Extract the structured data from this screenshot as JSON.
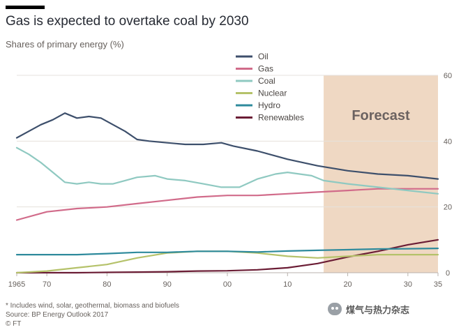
{
  "title": "Gas is expected to overtake coal by 2030",
  "subtitle": "Shares of primary energy (%)",
  "footnote": [
    "* Includes wind, solar, geothermal, biomass and biofuels",
    "Source: BP Energy Outlook 2017",
    "© FT"
  ],
  "watermark": "煤气与热力杂志",
  "colors": {
    "background": "#ffffff",
    "forecast_band": "#efd8c3",
    "forecast_text": "#6b6260",
    "grid": "#e6e1dc",
    "axis": "#b8b2ac",
    "tick_text": "#66605c"
  },
  "chart_data": {
    "type": "line",
    "title": "Gas is expected to overtake coal by 2030",
    "subtitle": "Shares of primary energy (%)",
    "xlabel": "",
    "ylabel": "",
    "xlim": [
      1965,
      2035
    ],
    "ylim": [
      0,
      60
    ],
    "x_ticks": [
      1965,
      1970,
      1980,
      1990,
      2000,
      2010,
      2020,
      2030,
      2035
    ],
    "x_tick_labels": [
      "1965",
      "70",
      "80",
      "90",
      "00",
      "10",
      "20",
      "30",
      "35"
    ],
    "y_ticks": [
      0,
      20,
      40,
      60
    ],
    "y_tick_labels": [
      "0",
      "20",
      "40",
      "60"
    ],
    "grid": true,
    "legend_position": "top-left",
    "forecast": {
      "start": 2016,
      "end": 2035,
      "label": "Forecast"
    },
    "series": [
      {
        "name": "Oil",
        "color": "#3d4f6b",
        "x": [
          1965,
          1967,
          1969,
          1971,
          1973,
          1975,
          1977,
          1979,
          1981,
          1983,
          1985,
          1987,
          1990,
          1993,
          1996,
          1999,
          2001,
          2005,
          2010,
          2015,
          2020,
          2025,
          2030,
          2035
        ],
        "values": [
          41,
          43,
          45,
          46.5,
          48.5,
          47,
          47.5,
          47,
          45,
          43,
          40.5,
          40,
          39.5,
          39,
          39,
          39.5,
          38.5,
          37,
          34.5,
          32.5,
          31,
          30,
          29.5,
          28.5
        ]
      },
      {
        "name": "Gas",
        "color": "#d16b8a",
        "x": [
          1965,
          1970,
          1975,
          1980,
          1985,
          1990,
          1995,
          2000,
          2005,
          2010,
          2015,
          2020,
          2025,
          2030,
          2035
        ],
        "values": [
          16,
          18.5,
          19.5,
          20,
          21,
          22,
          23,
          23.5,
          23.5,
          24,
          24.5,
          25,
          25.5,
          25.5,
          25.5
        ]
      },
      {
        "name": "Coal",
        "color": "#8fc9c1",
        "x": [
          1965,
          1967,
          1969,
          1971,
          1973,
          1975,
          1977,
          1979,
          1981,
          1983,
          1985,
          1988,
          1990,
          1993,
          1996,
          1999,
          2002,
          2005,
          2008,
          2010,
          2012,
          2014,
          2016,
          2020,
          2025,
          2030,
          2035
        ],
        "values": [
          38,
          36,
          33.5,
          30.5,
          27.5,
          27,
          27.5,
          27,
          27,
          28,
          29,
          29.5,
          28.5,
          28,
          27,
          26,
          26,
          28.5,
          30,
          30.5,
          30,
          29.5,
          28,
          27,
          26,
          25,
          24
        ]
      },
      {
        "name": "Nuclear",
        "color": "#b5c26a",
        "x": [
          1965,
          1970,
          1975,
          1980,
          1985,
          1990,
          1995,
          2000,
          2005,
          2010,
          2015,
          2020,
          2025,
          2030,
          2035
        ],
        "values": [
          0,
          0.5,
          1.5,
          2.5,
          4.5,
          6,
          6.5,
          6.5,
          6,
          5,
          4.5,
          5,
          5.5,
          5.5,
          5.5
        ]
      },
      {
        "name": "Hydro",
        "color": "#2e8a9c",
        "x": [
          1965,
          1970,
          1975,
          1980,
          1985,
          1990,
          1995,
          2000,
          2005,
          2010,
          2015,
          2020,
          2025,
          2030,
          2035
        ],
        "values": [
          5.5,
          5.5,
          5.5,
          5.8,
          6.2,
          6.2,
          6.5,
          6.5,
          6.3,
          6.6,
          6.8,
          7,
          7.2,
          7.3,
          7.4
        ]
      },
      {
        "name": "Renewables",
        "color": "#6b1d35",
        "x": [
          1965,
          1970,
          1975,
          1980,
          1985,
          1990,
          1995,
          2000,
          2005,
          2010,
          2015,
          2020,
          2025,
          2030,
          2035
        ],
        "values": [
          0,
          0,
          0,
          0.1,
          0.2,
          0.3,
          0.5,
          0.6,
          0.9,
          1.5,
          2.8,
          4.8,
          6.5,
          8.5,
          10
        ]
      }
    ]
  }
}
